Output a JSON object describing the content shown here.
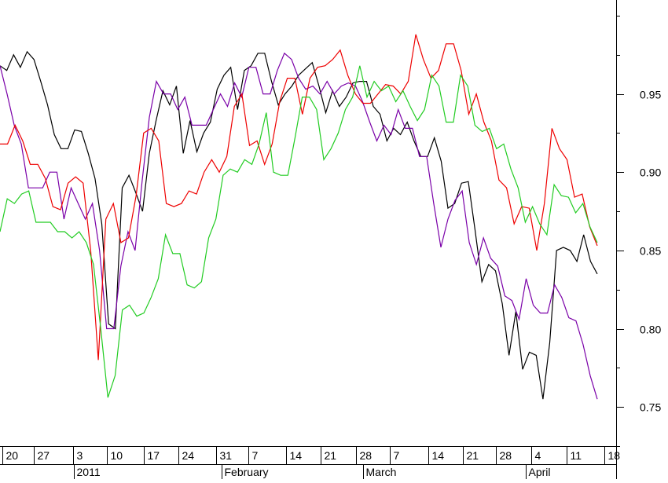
{
  "chart_data": {
    "type": "line",
    "background": "#ffffff",
    "axis_color": "#000000",
    "y_axis_side": "right",
    "ylim": [
      0.725,
      1.01
    ],
    "y_ticks": [
      0.75,
      0.8,
      0.85,
      0.9,
      0.95
    ],
    "y_tick_labels": [
      "0.75",
      "0.80",
      "0.85",
      "0.90",
      "0.95"
    ],
    "y_minor_step": 0.025,
    "grid": false,
    "x_day_labels": [
      "20",
      "27",
      "3",
      "10",
      "17",
      "24",
      "31",
      "7",
      "14",
      "21",
      "28",
      "7",
      "14",
      "21",
      "28",
      "4",
      "11",
      "18"
    ],
    "x_period_labels": [
      "2011",
      "February",
      "March",
      "April"
    ],
    "series": [
      {
        "color": "#000000",
        "values": [
          0.968,
          0.965,
          0.975,
          0.967,
          0.977,
          0.972,
          0.958,
          0.943,
          0.924,
          0.915,
          0.915,
          0.927,
          0.926,
          0.912,
          0.896,
          0.867,
          0.803,
          0.8,
          0.89,
          0.898,
          0.887,
          0.875,
          0.912,
          0.933,
          0.952,
          0.943,
          0.955,
          0.912,
          0.933,
          0.913,
          0.925,
          0.932,
          0.953,
          0.962,
          0.967,
          0.94,
          0.965,
          0.968,
          0.976,
          0.976,
          0.958,
          0.943,
          0.95,
          0.955,
          0.962,
          0.966,
          0.97,
          0.955,
          0.938,
          0.952,
          0.942,
          0.948,
          0.957,
          0.958,
          0.958,
          0.942,
          0.937,
          0.92,
          0.928,
          0.924,
          0.932,
          0.92,
          0.91,
          0.91,
          0.922,
          0.907,
          0.877,
          0.88,
          0.893,
          0.894,
          0.863,
          0.83,
          0.841,
          0.837,
          0.816,
          0.783,
          0.811,
          0.774,
          0.785,
          0.783,
          0.755,
          0.791,
          0.85,
          0.852,
          0.85,
          0.843,
          0.86,
          0.843,
          0.835
        ]
      },
      {
        "color": "#7a00a8",
        "values": [
          0.968,
          0.95,
          0.93,
          0.918,
          0.89,
          0.89,
          0.89,
          0.9,
          0.9,
          0.87,
          0.89,
          0.88,
          0.87,
          0.88,
          0.85,
          0.8,
          0.8,
          0.84,
          0.862,
          0.85,
          0.895,
          0.935,
          0.958,
          0.95,
          0.95,
          0.94,
          0.948,
          0.93,
          0.93,
          0.93,
          0.94,
          0.95,
          0.942,
          0.957,
          0.948,
          0.967,
          0.967,
          0.95,
          0.95,
          0.965,
          0.976,
          0.972,
          0.96,
          0.953,
          0.955,
          0.95,
          0.958,
          0.95,
          0.955,
          0.957,
          0.955,
          0.945,
          0.932,
          0.92,
          0.93,
          0.924,
          0.94,
          0.928,
          0.928,
          0.91,
          0.91,
          0.88,
          0.852,
          0.87,
          0.882,
          0.888,
          0.855,
          0.841,
          0.858,
          0.845,
          0.84,
          0.821,
          0.818,
          0.806,
          0.832,
          0.815,
          0.81,
          0.81,
          0.828,
          0.82,
          0.807,
          0.805,
          0.79,
          0.77,
          0.755
        ]
      },
      {
        "color": "#ee0000",
        "values": [
          0.918,
          0.918,
          0.93,
          0.92,
          0.905,
          0.905,
          0.896,
          0.878,
          0.876,
          0.893,
          0.897,
          0.893,
          0.85,
          0.78,
          0.87,
          0.88,
          0.855,
          0.858,
          0.885,
          0.925,
          0.928,
          0.92,
          0.88,
          0.878,
          0.88,
          0.888,
          0.886,
          0.9,
          0.908,
          0.9,
          0.91,
          0.942,
          0.95,
          0.917,
          0.92,
          0.905,
          0.918,
          0.945,
          0.96,
          0.96,
          0.937,
          0.96,
          0.967,
          0.968,
          0.972,
          0.978,
          0.962,
          0.95,
          0.944,
          0.944,
          0.95,
          0.956,
          0.955,
          0.95,
          0.958,
          0.988,
          0.972,
          0.96,
          0.965,
          0.982,
          0.982,
          0.965,
          0.937,
          0.95,
          0.932,
          0.92,
          0.895,
          0.89,
          0.867,
          0.878,
          0.877,
          0.85,
          0.88,
          0.928,
          0.915,
          0.908,
          0.884,
          0.886,
          0.865,
          0.853
        ]
      },
      {
        "color": "#22cc22",
        "values": [
          0.862,
          0.883,
          0.88,
          0.886,
          0.888,
          0.868,
          0.868,
          0.868,
          0.862,
          0.862,
          0.858,
          0.862,
          0.855,
          0.841,
          0.8,
          0.756,
          0.77,
          0.812,
          0.815,
          0.808,
          0.81,
          0.82,
          0.832,
          0.86,
          0.848,
          0.848,
          0.828,
          0.826,
          0.83,
          0.858,
          0.87,
          0.898,
          0.902,
          0.9,
          0.908,
          0.905,
          0.918,
          0.938,
          0.9,
          0.898,
          0.898,
          0.922,
          0.948,
          0.948,
          0.94,
          0.908,
          0.915,
          0.925,
          0.94,
          0.948,
          0.968,
          0.948,
          0.958,
          0.952,
          0.955,
          0.945,
          0.952,
          0.942,
          0.933,
          0.94,
          0.962,
          0.955,
          0.932,
          0.932,
          0.962,
          0.955,
          0.93,
          0.926,
          0.928,
          0.915,
          0.918,
          0.902,
          0.89,
          0.868,
          0.878,
          0.867,
          0.86,
          0.892,
          0.885,
          0.884,
          0.874,
          0.88,
          0.865,
          0.855
        ]
      }
    ]
  }
}
